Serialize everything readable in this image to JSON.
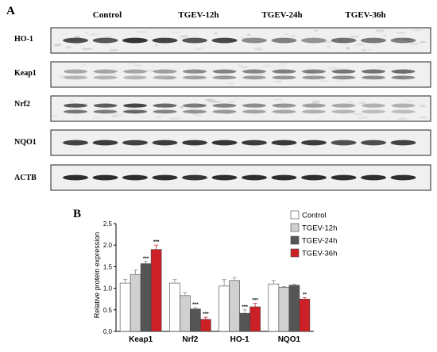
{
  "panel_a": {
    "letter": "A",
    "groups": [
      "Control",
      "TGEV-12h",
      "TGEV-24h",
      "TGEV-36h"
    ],
    "blots": [
      {
        "label": "HO-1",
        "intensities": [
          0.8,
          0.75,
          0.92,
          0.85,
          0.75,
          0.82,
          0.5,
          0.55,
          0.45,
          0.62,
          0.58,
          0.55
        ],
        "bands": 1,
        "noise": 0.45
      },
      {
        "label": "Keap1",
        "intensities": [
          0.4,
          0.42,
          0.4,
          0.45,
          0.55,
          0.6,
          0.58,
          0.62,
          0.6,
          0.68,
          0.7,
          0.72
        ],
        "bands": 2,
        "noise": 0.2
      },
      {
        "label": "Nrf2",
        "intensities": [
          0.85,
          0.8,
          0.95,
          0.75,
          0.65,
          0.6,
          0.55,
          0.5,
          0.45,
          0.4,
          0.35,
          0.35
        ],
        "bands": 2,
        "noise": 0.35
      },
      {
        "label": "NQO1",
        "intensities": [
          0.85,
          0.88,
          0.86,
          0.88,
          0.9,
          0.92,
          0.88,
          0.9,
          0.88,
          0.78,
          0.8,
          0.85
        ],
        "bands": 1,
        "noise": 0.0
      },
      {
        "label": "ACTB",
        "intensities": [
          0.95,
          0.95,
          0.95,
          0.95,
          0.92,
          0.95,
          0.95,
          0.95,
          0.95,
          0.95,
          0.95,
          0.95
        ],
        "bands": 1,
        "noise": 0.0
      }
    ]
  },
  "panel_b": {
    "letter": "B"
  },
  "colors": {
    "Control": "#ffffff",
    "TGEV-12h": "#d0d0d0",
    "TGEV-24h": "#555555",
    "TGEV-36h": "#cc2027"
  },
  "chart_data": {
    "type": "bar",
    "categories": [
      "Keap1",
      "Nrf2",
      "HO-1",
      "NQO1"
    ],
    "ylabel": "Relative protein expression",
    "ylim": [
      0,
      2.5
    ],
    "yticks": [
      "0.0",
      "0.5",
      "1.0",
      "1.5",
      "2.0",
      "2.5"
    ],
    "legend": "top-right",
    "series": [
      {
        "name": "Control",
        "values": [
          1.12,
          1.12,
          1.05,
          1.1
        ],
        "errors": [
          0.08,
          0.08,
          0.15,
          0.08
        ],
        "sig": [
          "",
          "",
          "",
          ""
        ]
      },
      {
        "name": "TGEV-12h",
        "values": [
          1.32,
          0.83,
          1.18,
          1.02
        ],
        "errors": [
          0.1,
          0.07,
          0.07,
          0.02
        ],
        "sig": [
          "",
          "",
          "",
          ""
        ]
      },
      {
        "name": "TGEV-24h",
        "values": [
          1.57,
          0.52,
          0.42,
          1.07
        ],
        "errors": [
          0.05,
          0.03,
          0.08,
          0.02
        ],
        "sig": [
          "***",
          "***",
          "***",
          ""
        ]
      },
      {
        "name": "TGEV-36h",
        "values": [
          1.9,
          0.28,
          0.57,
          0.75
        ],
        "errors": [
          0.1,
          0.05,
          0.08,
          0.03
        ],
        "sig": [
          "***",
          "***",
          "***",
          "**"
        ]
      }
    ]
  }
}
